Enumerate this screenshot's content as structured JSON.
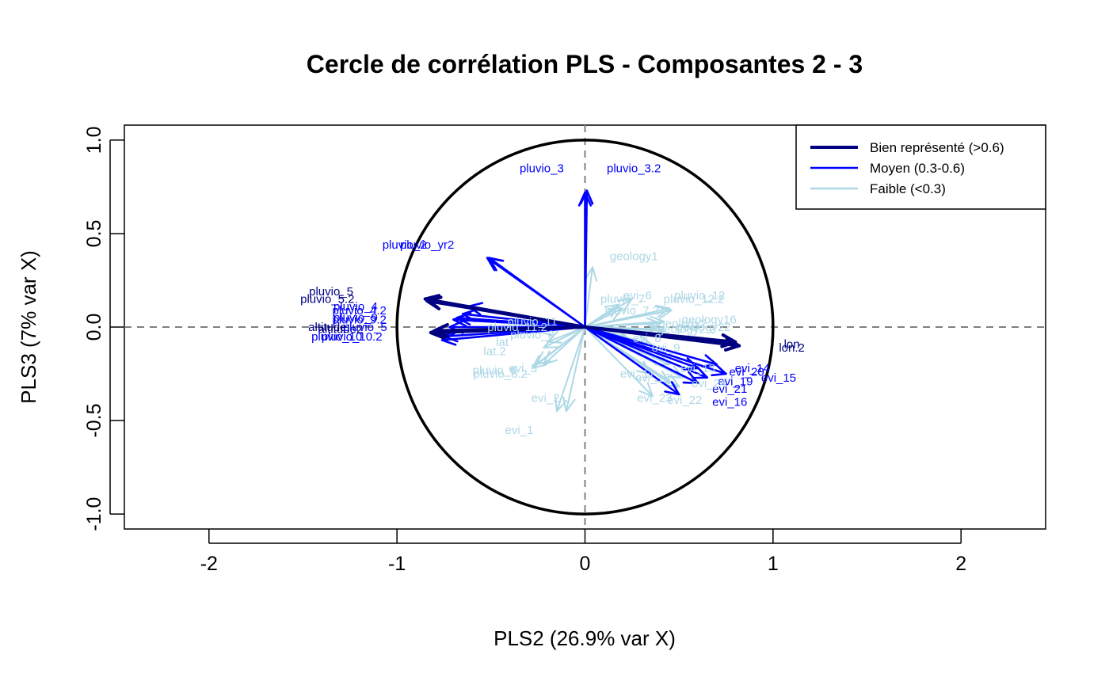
{
  "chart_data": {
    "type": "scatter",
    "title": "Cercle de corrélation PLS - Composantes 2 - 3",
    "xlabel": "PLS2 (26.9% var X)",
    "ylabel": "PLS3 (7% var X)",
    "xlim": [
      -2.45,
      2.45
    ],
    "ylim": [
      -1.08,
      1.08
    ],
    "xticks": [
      -2,
      -1,
      0,
      1,
      2
    ],
    "yticks": [
      -1.0,
      -0.5,
      0.0,
      0.5,
      1.0
    ],
    "xtick_labels": [
      "-2",
      "-1",
      "0",
      "1",
      "2"
    ],
    "ytick_labels": [
      "-1.0",
      "-0.5",
      "0.0",
      "0.5",
      "1.0"
    ],
    "circle_radius": 1,
    "reference_lines": {
      "x": 0,
      "y": 0,
      "style": "dashed"
    },
    "legend": {
      "position": "top-right",
      "entries": [
        {
          "label": "Bien représenté (>0.6)",
          "color": "#000080"
        },
        {
          "label": "Moyen (0.3-0.6)",
          "color": "#0000FF"
        },
        {
          "label": "Faible (<0.3)",
          "color": "#ADD8E6"
        }
      ]
    },
    "colors": {
      "well": "#000080",
      "medium": "#0000FF",
      "weak": "#ADD8E6"
    },
    "variables": [
      {
        "name": "pluvio_3",
        "x": 0.0,
        "y": 0.72,
        "group": "medium",
        "lx": -0.23,
        "ly": 0.85
      },
      {
        "name": "pluvio_3.2",
        "x": 0.01,
        "y": 0.73,
        "group": "medium",
        "lx": 0.26,
        "ly": 0.85
      },
      {
        "name": "pluvio_2",
        "x": -0.51,
        "y": 0.37,
        "group": "medium",
        "lx": -0.96,
        "ly": 0.44
      },
      {
        "name": "pluvio_yr2",
        "x": -0.52,
        "y": 0.37,
        "group": "medium",
        "lx": -0.84,
        "ly": 0.44
      },
      {
        "name": "pluvio_5",
        "x": -0.85,
        "y": 0.15,
        "group": "well",
        "lx": -1.35,
        "ly": 0.19
      },
      {
        "name": "pluvio_5.2",
        "x": -0.84,
        "y": 0.14,
        "group": "well",
        "lx": -1.37,
        "ly": 0.15
      },
      {
        "name": "pluvio_4",
        "x": -0.62,
        "y": 0.11,
        "group": "medium",
        "lx": -1.22,
        "ly": 0.11
      },
      {
        "name": "pluvio_4.2",
        "x": -0.65,
        "y": 0.07,
        "group": "medium",
        "lx": -1.2,
        "ly": 0.09
      },
      {
        "name": "pluvio_9",
        "x": -0.68,
        "y": 0.05,
        "group": "medium",
        "lx": -1.22,
        "ly": 0.05
      },
      {
        "name": "pluvio_9.2",
        "x": -0.7,
        "y": 0.04,
        "group": "medium",
        "lx": -1.2,
        "ly": 0.04
      },
      {
        "name": "altitude",
        "x": -0.8,
        "y": -0.02,
        "group": "well",
        "lx": -1.37,
        "ly": 0.0
      },
      {
        "name": "altitude2",
        "x": -0.82,
        "y": -0.03,
        "group": "well",
        "lx": -1.3,
        "ly": -0.01
      },
      {
        "name": "pluvio_5",
        "x": -0.72,
        "y": 0.0,
        "group": "medium",
        "lx": -1.17,
        "ly": 0.0
      },
      {
        "name": "pluvio_10",
        "x": -0.75,
        "y": -0.05,
        "group": "medium",
        "lx": -1.32,
        "ly": -0.05
      },
      {
        "name": "pluvio_10.2",
        "x": -0.76,
        "y": -0.07,
        "group": "medium",
        "lx": -1.24,
        "ly": -0.05
      },
      {
        "name": "pluvio_11",
        "x": -0.3,
        "y": 0.02,
        "group": "weak",
        "lx": -0.28,
        "ly": 0.03
      },
      {
        "name": "pluvio_11.2",
        "x": -0.32,
        "y": 0.0,
        "group": "weak",
        "lx": -0.36,
        "ly": 0.0
      },
      {
        "name": "pluvio_8",
        "x": -0.25,
        "y": -0.02,
        "group": "weak",
        "lx": -0.28,
        "ly": -0.04
      },
      {
        "name": "lat",
        "x": -0.2,
        "y": -0.08,
        "group": "weak",
        "lx": -0.44,
        "ly": -0.08
      },
      {
        "name": "lat.2",
        "x": -0.22,
        "y": -0.11,
        "group": "weak",
        "lx": -0.48,
        "ly": -0.13
      },
      {
        "name": "pluvio_6",
        "x": -0.26,
        "y": -0.2,
        "group": "weak",
        "lx": -0.48,
        "ly": -0.23
      },
      {
        "name": "pluvio_6.2",
        "x": -0.28,
        "y": -0.22,
        "group": "weak",
        "lx": -0.45,
        "ly": -0.25
      },
      {
        "name": "evi_3",
        "x": -0.22,
        "y": -0.2,
        "group": "weak",
        "lx": -0.33,
        "ly": -0.22
      },
      {
        "name": "evi_2",
        "x": -0.15,
        "y": -0.45,
        "group": "weak",
        "lx": -0.21,
        "ly": -0.38
      },
      {
        "name": "evi_1",
        "x": -0.1,
        "y": -0.45,
        "group": "weak",
        "lx": -0.35,
        "ly": -0.55
      },
      {
        "name": "geology1",
        "x": 0.04,
        "y": 0.32,
        "group": "weak",
        "lx": 0.26,
        "ly": 0.38
      },
      {
        "name": "evi_6",
        "x": 0.25,
        "y": 0.15,
        "group": "weak",
        "lx": 0.28,
        "ly": 0.17
      },
      {
        "name": "pluvio_7",
        "x": 0.18,
        "y": 0.12,
        "group": "weak",
        "lx": 0.2,
        "ly": 0.15
      },
      {
        "name": "pluvio_7.2",
        "x": 0.2,
        "y": 0.1,
        "group": "weak",
        "lx": 0.25,
        "ly": 0.09
      },
      {
        "name": "pluvio_12",
        "x": 0.45,
        "y": 0.1,
        "group": "weak",
        "lx": 0.61,
        "ly": 0.17
      },
      {
        "name": "pluvio_12.2",
        "x": 0.46,
        "y": 0.09,
        "group": "weak",
        "lx": 0.58,
        "ly": 0.15
      },
      {
        "name": "geology16",
        "x": 0.42,
        "y": 0.03,
        "group": "weak",
        "lx": 0.66,
        "ly": 0.04
      },
      {
        "name": "geology2",
        "x": 0.4,
        "y": 0.02,
        "group": "weak",
        "lx": 0.52,
        "ly": 0.02
      },
      {
        "name": "geology22",
        "x": 0.42,
        "y": -0.02,
        "group": "weak",
        "lx": 0.63,
        "ly": 0.0
      },
      {
        "name": "geology2.2",
        "x": 0.38,
        "y": -0.01,
        "group": "weak",
        "lx": 0.54,
        "ly": -0.01
      },
      {
        "name": "evi_8",
        "x": 0.22,
        "y": -0.05,
        "group": "weak",
        "lx": 0.33,
        "ly": -0.06
      },
      {
        "name": "evi_9",
        "x": 0.35,
        "y": -0.09,
        "group": "weak",
        "lx": 0.43,
        "ly": -0.11
      },
      {
        "name": "lon",
        "x": 0.8,
        "y": -0.08,
        "group": "well",
        "lx": 1.1,
        "ly": -0.09
      },
      {
        "name": "lon.2",
        "x": 0.82,
        "y": -0.1,
        "group": "well",
        "lx": 1.1,
        "ly": -0.11
      },
      {
        "name": "evi_14",
        "x": 0.7,
        "y": -0.2,
        "group": "medium",
        "lx": 0.89,
        "ly": -0.22
      },
      {
        "name": "evi_20",
        "x": 0.6,
        "y": -0.22,
        "group": "medium",
        "lx": 0.86,
        "ly": -0.24
      },
      {
        "name": "evi_15",
        "x": 0.75,
        "y": -0.25,
        "group": "medium",
        "lx": 1.03,
        "ly": -0.27
      },
      {
        "name": "evi_19",
        "x": 0.65,
        "y": -0.27,
        "group": "medium",
        "lx": 0.8,
        "ly": -0.29
      },
      {
        "name": "evi_21",
        "x": 0.6,
        "y": -0.3,
        "group": "medium",
        "lx": 0.77,
        "ly": -0.33
      },
      {
        "name": "evi_16",
        "x": 0.5,
        "y": -0.36,
        "group": "medium",
        "lx": 0.77,
        "ly": -0.4
      },
      {
        "name": "evi_17",
        "x": 0.35,
        "y": -0.25,
        "group": "weak",
        "lx": 0.28,
        "ly": -0.25
      },
      {
        "name": "evi_18",
        "x": 0.45,
        "y": -0.3,
        "group": "weak",
        "lx": 0.36,
        "ly": -0.27
      },
      {
        "name": "evi_22",
        "x": 0.5,
        "y": -0.32,
        "group": "weak",
        "lx": 0.53,
        "ly": -0.39
      },
      {
        "name": "evi_23",
        "x": 0.36,
        "y": -0.37,
        "group": "weak",
        "lx": 0.37,
        "ly": -0.38
      },
      {
        "name": "evi_24",
        "x": 0.52,
        "y": -0.27,
        "group": "weak",
        "lx": 0.66,
        "ly": -0.3
      },
      {
        "name": "evi_13",
        "x": 0.45,
        "y": -0.2,
        "group": "weak",
        "lx": 0.6,
        "ly": -0.22
      }
    ]
  }
}
